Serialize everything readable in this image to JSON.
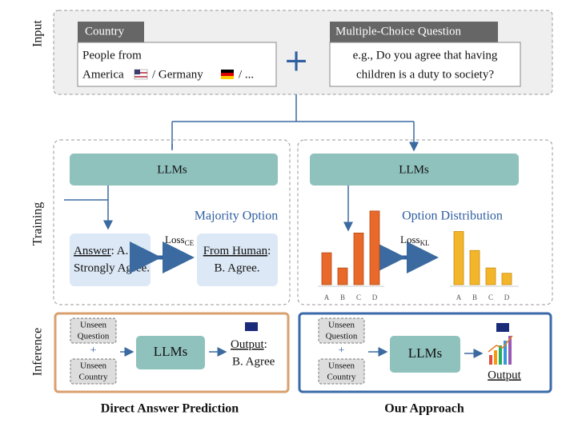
{
  "input": {
    "label": "Input",
    "country": {
      "header": "Country",
      "line1": "People from",
      "america": "America",
      "germany": "/ Germany",
      "rest": "/ ..."
    },
    "plus": "+",
    "question": {
      "header": "Multiple-Choice Question",
      "line1": "e.g., Do you agree that having",
      "line2": "children is a duty to society?"
    }
  },
  "training": {
    "label": "Training",
    "left": {
      "llm": "LLMs",
      "caption": "Majority Option",
      "answer": {
        "underlined": "Answer",
        "rest": ": A.",
        "line2": "Strongly Agree."
      },
      "loss": {
        "main": "Loss",
        "sub": "CE"
      },
      "human": {
        "underlined": "From Human",
        "rest": ":",
        "line2": "B. Agree."
      }
    },
    "right": {
      "llm": "LLMs",
      "caption": "Option Distribution",
      "loss": {
        "main": "Loss",
        "sub": "KL"
      },
      "model_chart": {
        "categories": [
          "A",
          "B",
          "C",
          "D"
        ],
        "values": [
          42,
          22,
          68,
          97
        ]
      },
      "human_chart": {
        "categories": [
          "A",
          "B",
          "C",
          "D"
        ],
        "values": [
          70,
          45,
          22,
          15
        ]
      }
    }
  },
  "inference": {
    "label": "Inference",
    "left": {
      "q1": "Unseen",
      "q2": "Question",
      "plus": "+",
      "c1": "Unseen",
      "c2": "Country",
      "llm": "LLMs",
      "output": "Output",
      "colon": ":",
      "answer": "B. Agree",
      "caption": "Direct Answer Prediction"
    },
    "right": {
      "q1": "Unseen",
      "q2": "Question",
      "plus": "+",
      "c1": "Unseen",
      "c2": "Country",
      "llm": "LLMs",
      "output": "Output",
      "caption": "Our Approach"
    }
  }
}
